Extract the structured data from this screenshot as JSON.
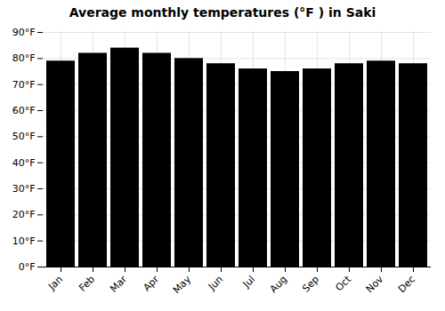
{
  "chart_data": {
    "type": "bar",
    "title": "Average monthly temperatures (°F ) in Saki",
    "categories": [
      "Jan",
      "Feb",
      "Mar",
      "Apr",
      "May",
      "Jun",
      "Jul",
      "Aug",
      "Sep",
      "Oct",
      "Nov",
      "Dec"
    ],
    "values": [
      79,
      82,
      84,
      82,
      80,
      78,
      76,
      75,
      76,
      78,
      79,
      78
    ],
    "ylim": [
      0,
      90
    ],
    "yticks": [
      {
        "value": 0,
        "label": "0°F"
      },
      {
        "value": 10,
        "label": "10°F"
      },
      {
        "value": 20,
        "label": "20°F"
      },
      {
        "value": 30,
        "label": "30°F"
      },
      {
        "value": 40,
        "label": "40°F"
      },
      {
        "value": 50,
        "label": "50°F"
      },
      {
        "value": 60,
        "label": "60°F"
      },
      {
        "value": 70,
        "label": "70°F"
      },
      {
        "value": 80,
        "label": "80°F"
      },
      {
        "value": 90,
        "label": "90°F"
      }
    ],
    "grid": true
  }
}
